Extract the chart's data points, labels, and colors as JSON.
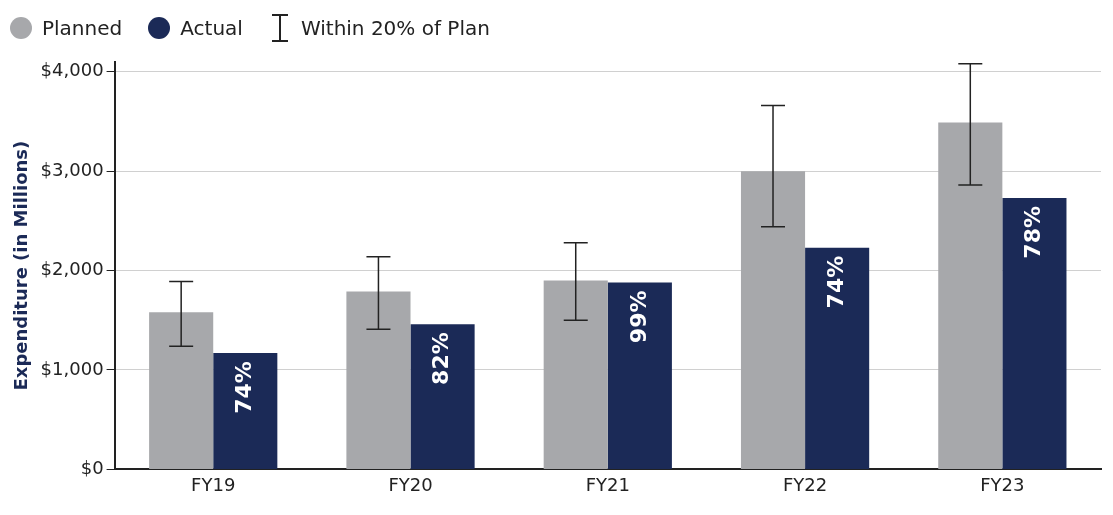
{
  "chart_data": {
    "type": "bar",
    "categories": [
      "FY19",
      "FY20",
      "FY21",
      "FY22",
      "FY23"
    ],
    "series": [
      {
        "name": "Planned",
        "color": "#a7a8ab",
        "values": [
          1580,
          1790,
          1900,
          3000,
          3490
        ],
        "errors": [
          [
            1240,
            1890
          ],
          [
            1410,
            2140
          ],
          [
            1500,
            2280
          ],
          [
            2440,
            3660
          ],
          [
            2860,
            4080
          ]
        ]
      },
      {
        "name": "Actual",
        "color": "#1b2a57",
        "values": [
          1170,
          1460,
          1880,
          2230,
          2730
        ]
      }
    ],
    "ylabel": "Expenditure (in Millions)",
    "ylim": [
      0,
      4100
    ],
    "yticks": [
      {
        "value": 0,
        "label": "$0"
      },
      {
        "value": 1000,
        "label": "$1,000"
      },
      {
        "value": 2000,
        "label": "$2,000"
      },
      {
        "value": 3000,
        "label": "$3,000"
      },
      {
        "value": 4000,
        "label": "$4,000"
      }
    ],
    "grid": "y",
    "legend": "top left",
    "annotations": [
      "Within 20% of Plan",
      {
        "text": "74%",
        "x": "FY19",
        "y": 1170
      },
      {
        "text": "82%",
        "x": "FY20",
        "y": 1460
      },
      {
        "text": "99%",
        "x": "FY21",
        "y": 1880
      },
      {
        "text": "74%",
        "x": "FY22",
        "y": 2230
      },
      {
        "text": "78%",
        "x": "FY23",
        "y": 2730
      }
    ]
  }
}
